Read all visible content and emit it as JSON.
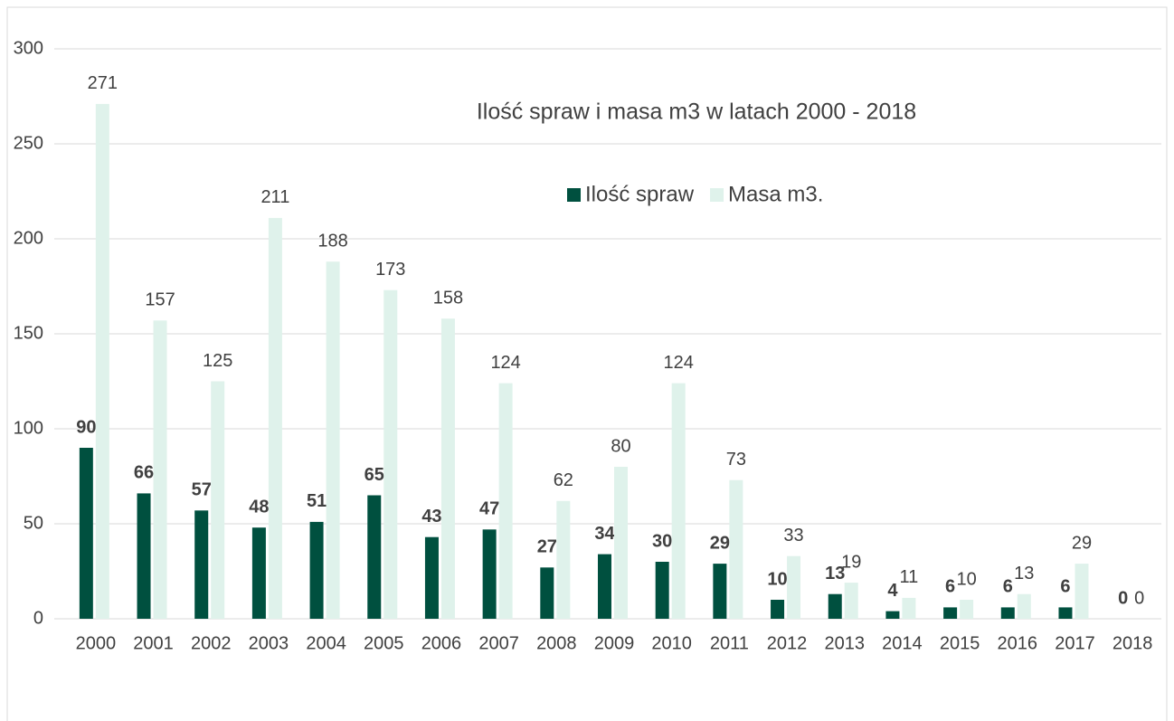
{
  "chart_data": {
    "type": "bar",
    "title": "Ilość spraw i masa m3 w latach 2000 - 2018",
    "categories": [
      "2000",
      "2001",
      "2002",
      "2003",
      "2004",
      "2005",
      "2006",
      "2007",
      "2008",
      "2009",
      "2010",
      "2011",
      "2012",
      "2013",
      "2014",
      "2015",
      "2016",
      "2017",
      "2018"
    ],
    "series": [
      {
        "name": "Ilość spraw",
        "color": "#00503f",
        "values": [
          90,
          66,
          57,
          48,
          51,
          65,
          43,
          47,
          27,
          34,
          30,
          29,
          10,
          13,
          4,
          6,
          6,
          6,
          0
        ]
      },
      {
        "name": "Masa m3.",
        "color": "#dff2eb",
        "values": [
          271,
          157,
          125,
          211,
          188,
          173,
          158,
          124,
          62,
          80,
          124,
          73,
          33,
          19,
          11,
          10,
          13,
          29,
          0
        ]
      }
    ],
    "ylim": [
      0,
      300
    ],
    "yticks": [
      0,
      50,
      100,
      150,
      200,
      250,
      300
    ],
    "grid": true
  }
}
